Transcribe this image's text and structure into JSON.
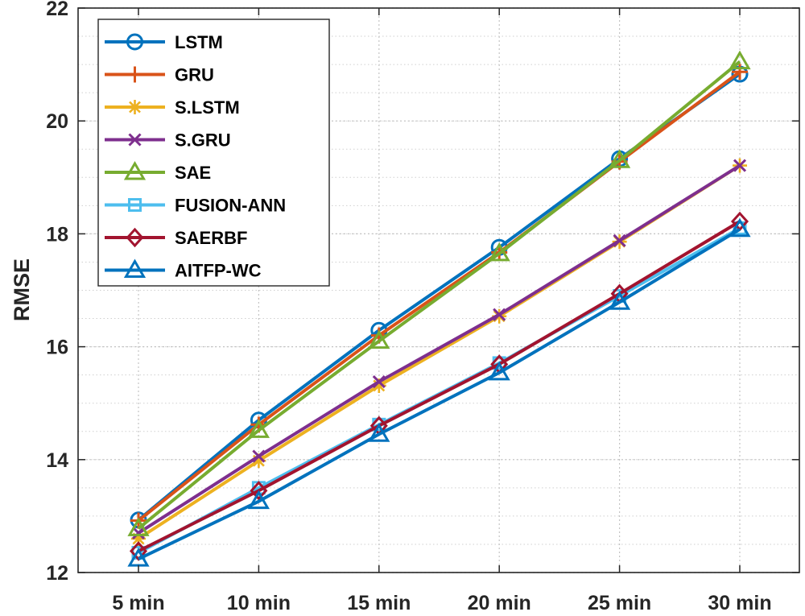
{
  "chart_data": {
    "type": "line",
    "title": "",
    "xlabel": "",
    "ylabel": "RMSE",
    "categories": [
      "5 min",
      "10 min",
      "15 min",
      "20 min",
      "25 min",
      "30 min"
    ],
    "ylim": [
      12,
      22
    ],
    "yticks": [
      12,
      14,
      16,
      18,
      20,
      22
    ],
    "grid": "major and minor (dotted)",
    "legend_position": "top-left",
    "series": [
      {
        "name": "LSTM",
        "color": "#0072BD",
        "marker": "circle",
        "values": [
          12.93,
          14.7,
          16.29,
          17.76,
          19.33,
          20.83
        ]
      },
      {
        "name": "GRU",
        "color": "#D95319",
        "marker": "plus",
        "values": [
          12.92,
          14.62,
          16.2,
          17.67,
          19.28,
          20.87
        ]
      },
      {
        "name": "S.LSTM",
        "color": "#EDB120",
        "marker": "asterisk",
        "values": [
          12.6,
          13.98,
          15.31,
          16.54,
          17.86,
          19.21
        ]
      },
      {
        "name": "S.GRU",
        "color": "#7E2F8E",
        "marker": "x",
        "values": [
          12.7,
          14.06,
          15.38,
          16.57,
          17.88,
          19.21
        ]
      },
      {
        "name": "SAE",
        "color": "#77AC30",
        "marker": "triangle",
        "values": [
          12.78,
          14.52,
          16.1,
          17.65,
          19.3,
          21.05
        ]
      },
      {
        "name": "FUSION-ANN",
        "color": "#4DBEEE",
        "marker": "square",
        "values": [
          12.35,
          13.5,
          14.62,
          15.71,
          16.9,
          18.1
        ]
      },
      {
        "name": "SAERBF",
        "color": "#A2142F",
        "marker": "diamond",
        "values": [
          12.38,
          13.45,
          14.6,
          15.69,
          16.94,
          18.22
        ]
      },
      {
        "name": "AITFP-WC",
        "color": "#0072BD",
        "marker": "triangle",
        "values": [
          12.24,
          13.26,
          14.45,
          15.54,
          16.79,
          18.08
        ]
      }
    ]
  }
}
